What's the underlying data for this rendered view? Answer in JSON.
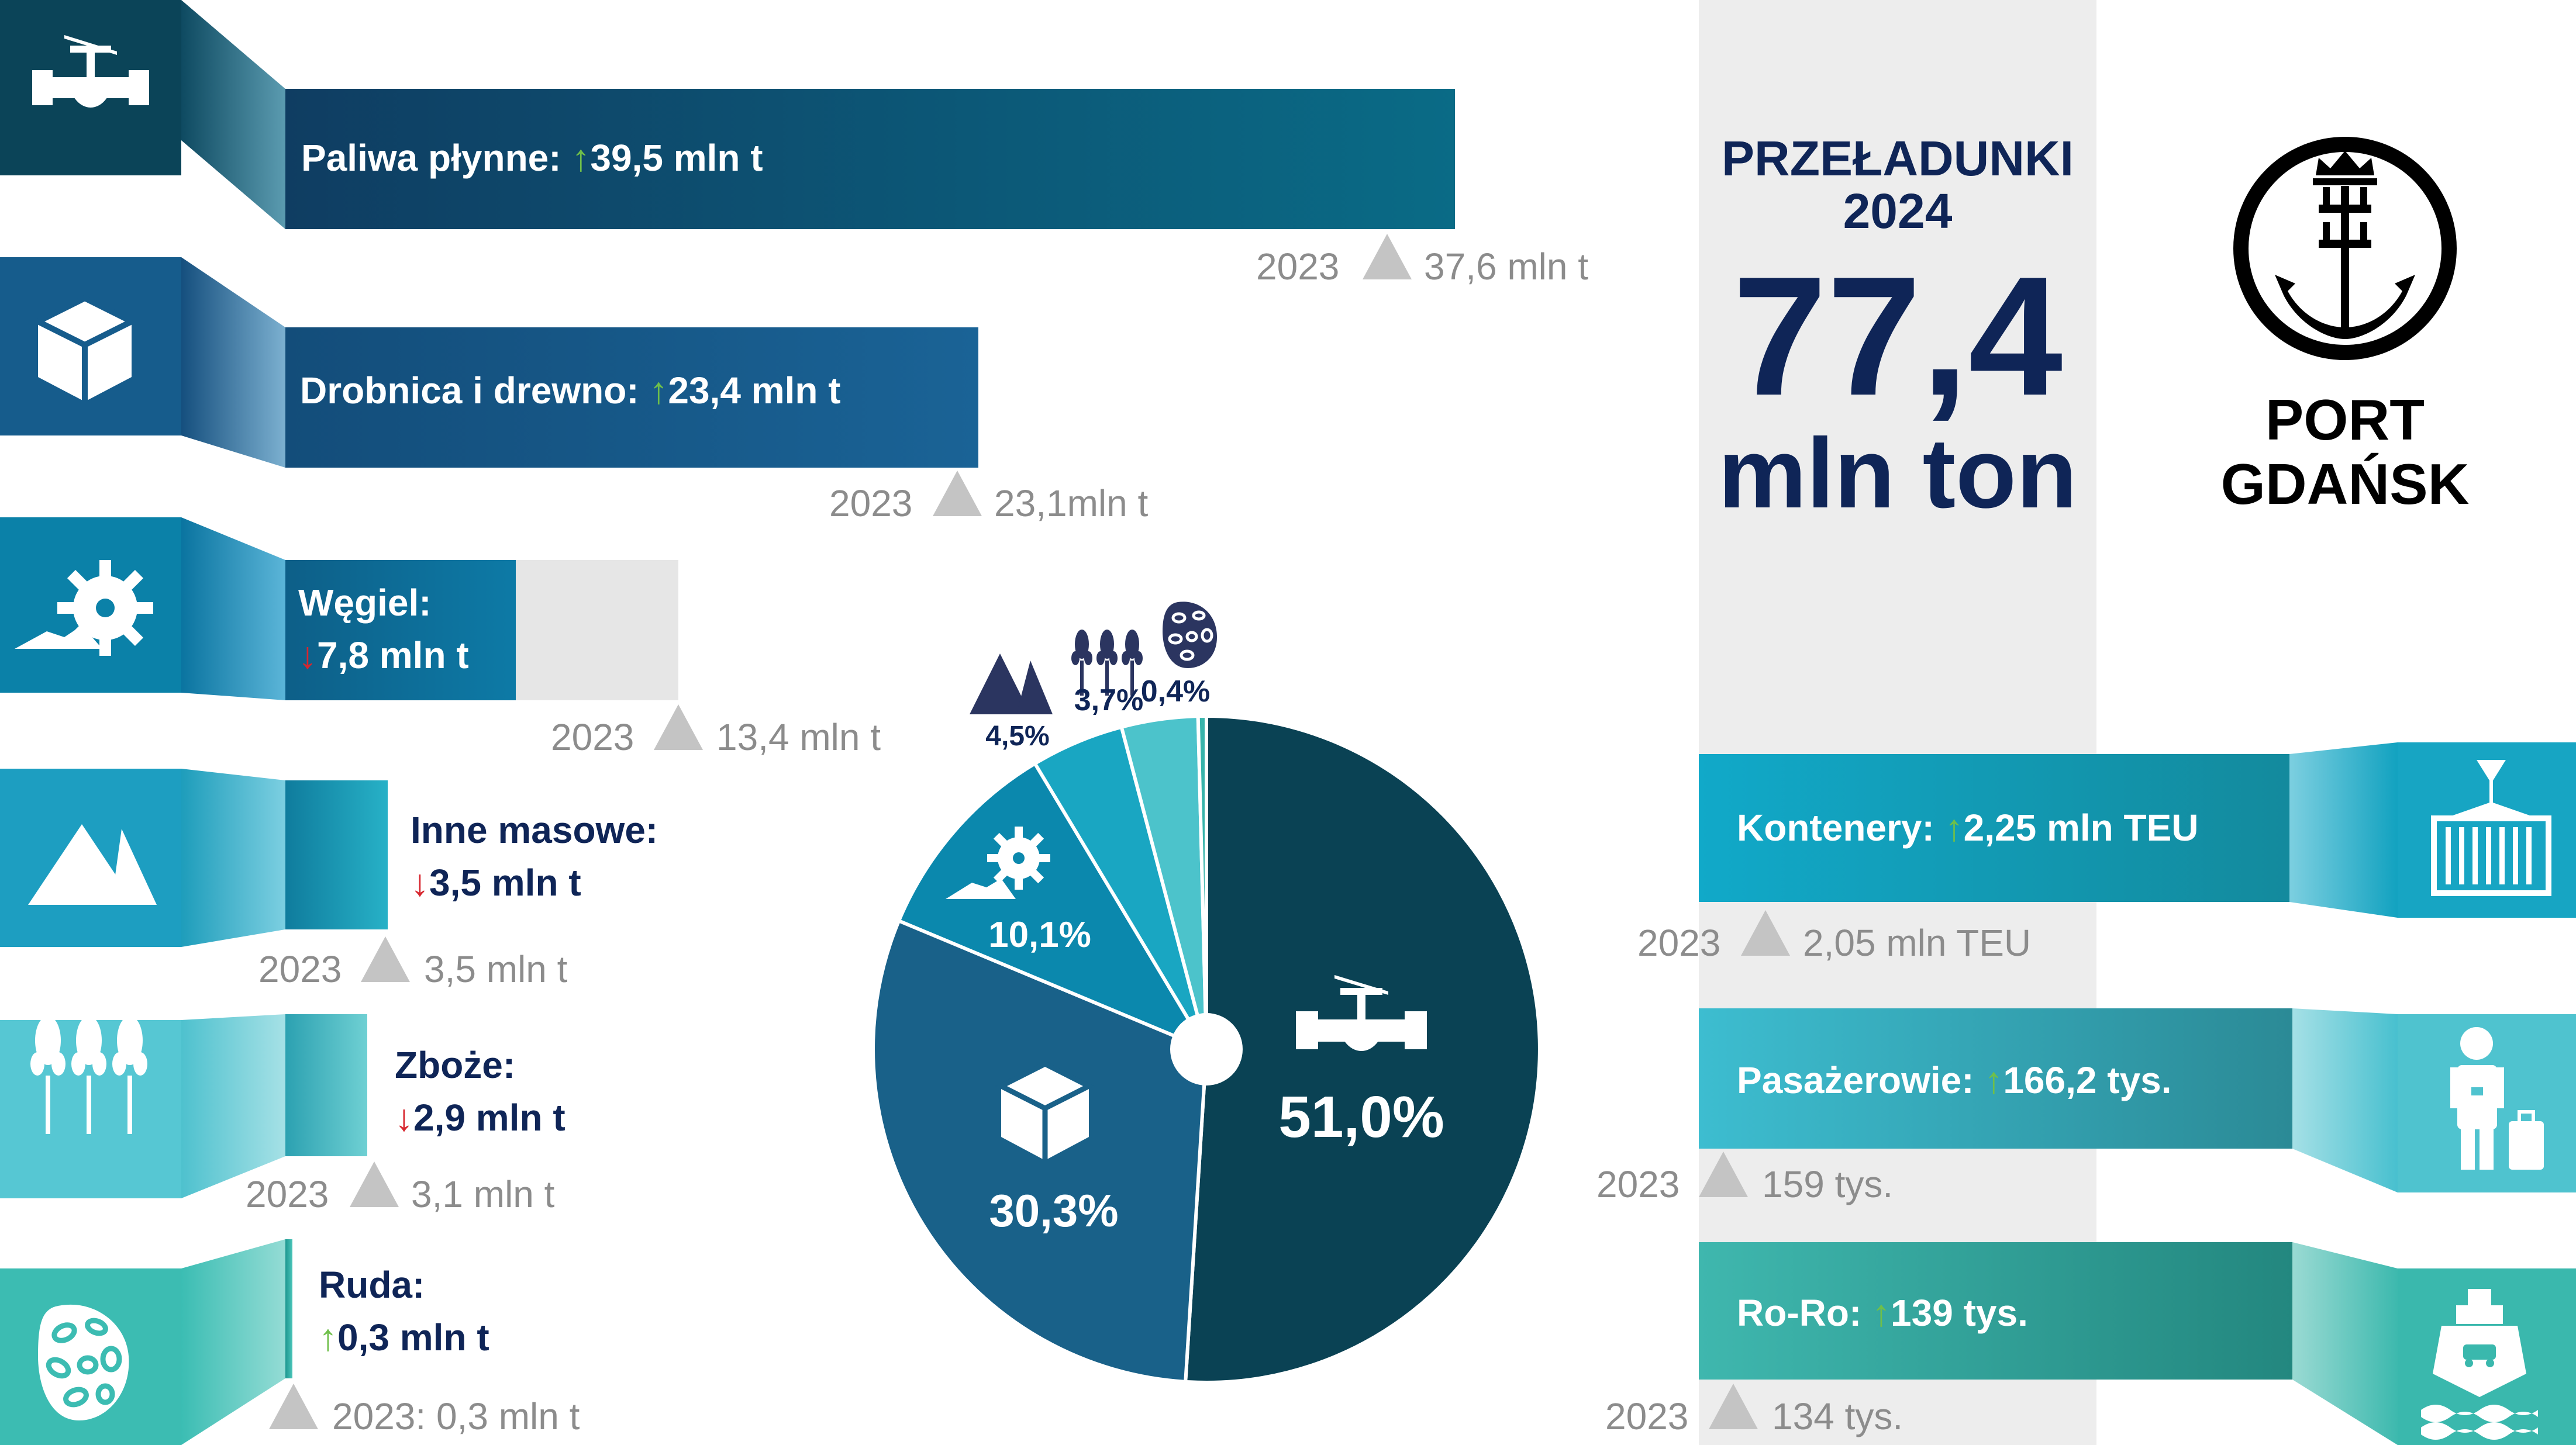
{
  "title": {
    "line1": "PRZEŁADUNKI",
    "line2": "2024",
    "total_value": "77,4",
    "total_unit": "mln ton"
  },
  "logo": {
    "line1": "PORT",
    "line2": "GDAŃSK"
  },
  "colors": {
    "navy": "#0f2557",
    "up": "#6fbf4a",
    "down": "#d7262e",
    "grey": "#8c8c8c"
  },
  "left_bars": [
    {
      "icon": "valve-icon",
      "label": "Paliwa płynne: ",
      "value": "39,5 mln t",
      "trend": "up",
      "prev_year": "2023",
      "prev_value": "37,6 mln t"
    },
    {
      "icon": "cube-icon",
      "label": "Drobnica i drewno: ",
      "value": "23,4 mln t",
      "trend": "up",
      "prev_year": "2023",
      "prev_value": "23,1mln t"
    },
    {
      "icon": "coal-excavator-icon",
      "label": "Węgiel:",
      "value": "7,8 mln t",
      "trend": "down",
      "prev_year": "2023",
      "prev_value": "13,4 mln t"
    },
    {
      "icon": "mountains-icon",
      "label": "Inne masowe:",
      "value": "3,5 mln t",
      "trend": "down",
      "prev_year": "2023",
      "prev_value": "3,5 mln t"
    },
    {
      "icon": "wheat-icon",
      "label": "Zboże:",
      "value": "2,9 mln t",
      "trend": "down",
      "prev_year": "2023",
      "prev_value": "3,1 mln t"
    },
    {
      "icon": "ore-icon",
      "label": "Ruda:",
      "value": "0,3 mln t",
      "trend": "up",
      "prev_year": "",
      "prev_value": "2023: 0,3 mln t"
    }
  ],
  "right_bars": [
    {
      "icon": "container-icon",
      "label": "Kontenery: ",
      "value": "2,25 mln TEU",
      "trend": "up",
      "prev_year": "2023",
      "prev_value": "2,05 mln TEU"
    },
    {
      "icon": "passenger-icon",
      "label": "Pasażerowie: ",
      "value": "166,2 tys.",
      "trend": "up",
      "prev_year": "2023",
      "prev_value": "159 tys."
    },
    {
      "icon": "ferry-icon",
      "label": "Ro-Ro: ",
      "value": "139 tys.",
      "trend": "up",
      "prev_year": "2023",
      "prev_value": "134 tys."
    }
  ],
  "chart_data": {
    "type": "pie",
    "title": "",
    "slices": [
      {
        "name": "Paliwa płynne",
        "value": 51.0,
        "label": "51,0%",
        "color": "#0a4254"
      },
      {
        "name": "Drobnica i drewno",
        "value": 30.3,
        "label": "30,3%",
        "color": "#196189"
      },
      {
        "name": "Węgiel",
        "value": 10.1,
        "label": "10,1%",
        "color": "#0b88ad"
      },
      {
        "name": "Inne masowe",
        "value": 4.5,
        "label": "4,5%",
        "color": "#19a6c2"
      },
      {
        "name": "Zboże",
        "value": 3.7,
        "label": "3,7%",
        "color": "#4cc3cb"
      },
      {
        "name": "Ruda",
        "value": 0.4,
        "label": "0,4%",
        "color": "#37b4ab"
      }
    ]
  }
}
